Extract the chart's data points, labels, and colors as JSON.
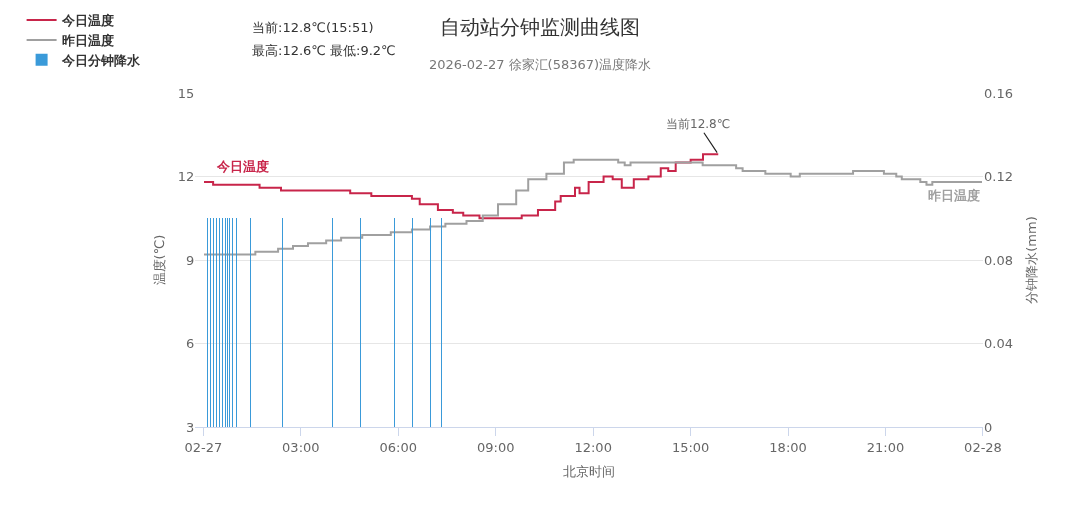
{
  "chart_data": {
    "type": "step",
    "title": "自动站分钟监测曲线图",
    "subtitle": "2026-02-27 徐家汇(58367)温度降水",
    "xlabel": "北京时间",
    "ylabel": "温度(℃)",
    "y2label": "分钟降水(mm)",
    "xlim": [
      -0.25,
      24
    ],
    "xticks": [
      {
        "value": 0,
        "label": "02-27"
      },
      {
        "value": 3,
        "label": "03:00"
      },
      {
        "value": 6,
        "label": "06:00"
      },
      {
        "value": 9,
        "label": "09:00"
      },
      {
        "value": 12,
        "label": "12:00"
      },
      {
        "value": 15,
        "label": "15:00"
      },
      {
        "value": 18,
        "label": "18:00"
      },
      {
        "value": 21,
        "label": "21:00"
      },
      {
        "value": 24,
        "label": "02-28"
      }
    ],
    "ylim": [
      3,
      15
    ],
    "yticks": [
      3,
      6,
      9,
      12,
      15
    ],
    "y2lim": [
      0,
      0.16
    ],
    "y2ticks": [
      0,
      0.04,
      0.08,
      0.12,
      0.16
    ],
    "grid": "y",
    "legend": "top left",
    "marker": "none",
    "line_style": "solid",
    "series": [
      {
        "name": "今日温度",
        "color": "#c8254a",
        "x": [
          0.02,
          0.3,
          1.73,
          2.39,
          4.52,
          5.17,
          6.42,
          6.66,
          7.22,
          7.68,
          8.0,
          8.5,
          9.8,
          10.3,
          10.83,
          11.0,
          11.44,
          11.58,
          11.86,
          12.32,
          12.6,
          12.88,
          13.25,
          13.7,
          14.08,
          14.31,
          14.54,
          15.0,
          15.38,
          15.85
        ],
        "values": [
          11.8,
          11.7,
          11.6,
          11.5,
          11.4,
          11.3,
          11.2,
          11.0,
          10.8,
          10.7,
          10.6,
          10.5,
          10.6,
          10.8,
          11.1,
          11.3,
          11.6,
          11.4,
          11.8,
          12.0,
          11.9,
          11.6,
          11.9,
          12.0,
          12.3,
          12.2,
          12.5,
          12.6,
          12.8,
          12.8
        ]
      },
      {
        "name": "昨日温度",
        "color": "#a0a0a0",
        "x": [
          0.02,
          1.6,
          2.3,
          2.76,
          3.22,
          3.78,
          4.24,
          4.89,
          5.77,
          6.42,
          6.98,
          7.45,
          8.1,
          8.6,
          9.07,
          9.63,
          10.0,
          10.56,
          11.1,
          11.4,
          12.4,
          12.77,
          12.97,
          13.15,
          14.45,
          15.37,
          16.4,
          16.6,
          17.3,
          18.08,
          18.36,
          20.0,
          20.95,
          21.33,
          21.5,
          22.07,
          22.26,
          22.44,
          23.97
        ],
        "values": [
          9.2,
          9.3,
          9.4,
          9.5,
          9.6,
          9.7,
          9.8,
          9.9,
          10.0,
          10.1,
          10.2,
          10.3,
          10.4,
          10.6,
          11.0,
          11.5,
          11.9,
          12.1,
          12.5,
          12.6,
          12.6,
          12.5,
          12.4,
          12.5,
          12.5,
          12.4,
          12.3,
          12.2,
          12.1,
          12.0,
          12.1,
          12.2,
          12.1,
          12.0,
          11.9,
          11.8,
          11.7,
          11.8,
          11.8
        ]
      },
      {
        "name": "今日分钟降水",
        "type": "bar",
        "axis": "y2",
        "color": "#3a9ad9",
        "x": [
          0.14,
          0.21,
          0.31,
          0.4,
          0.49,
          0.59,
          0.68,
          0.75,
          0.81,
          0.9,
          1.01,
          1.44,
          2.44,
          3.98,
          4.85,
          5.88,
          6.43,
          6.99,
          7.34
        ],
        "values": [
          0.1,
          0.1,
          0.1,
          0.1,
          0.1,
          0.1,
          0.1,
          0.1,
          0.1,
          0.1,
          0.1,
          0.1,
          0.1,
          0.1,
          0.1,
          0.1,
          0.1,
          0.1,
          0.1
        ]
      }
    ],
    "annotations": [
      "当前:12.8℃(15:51)",
      "最高:12.6℃ 最低:9.2℃",
      {
        "text": "当前12.8℃",
        "x": 15.85,
        "y": 12.8
      }
    ]
  }
}
